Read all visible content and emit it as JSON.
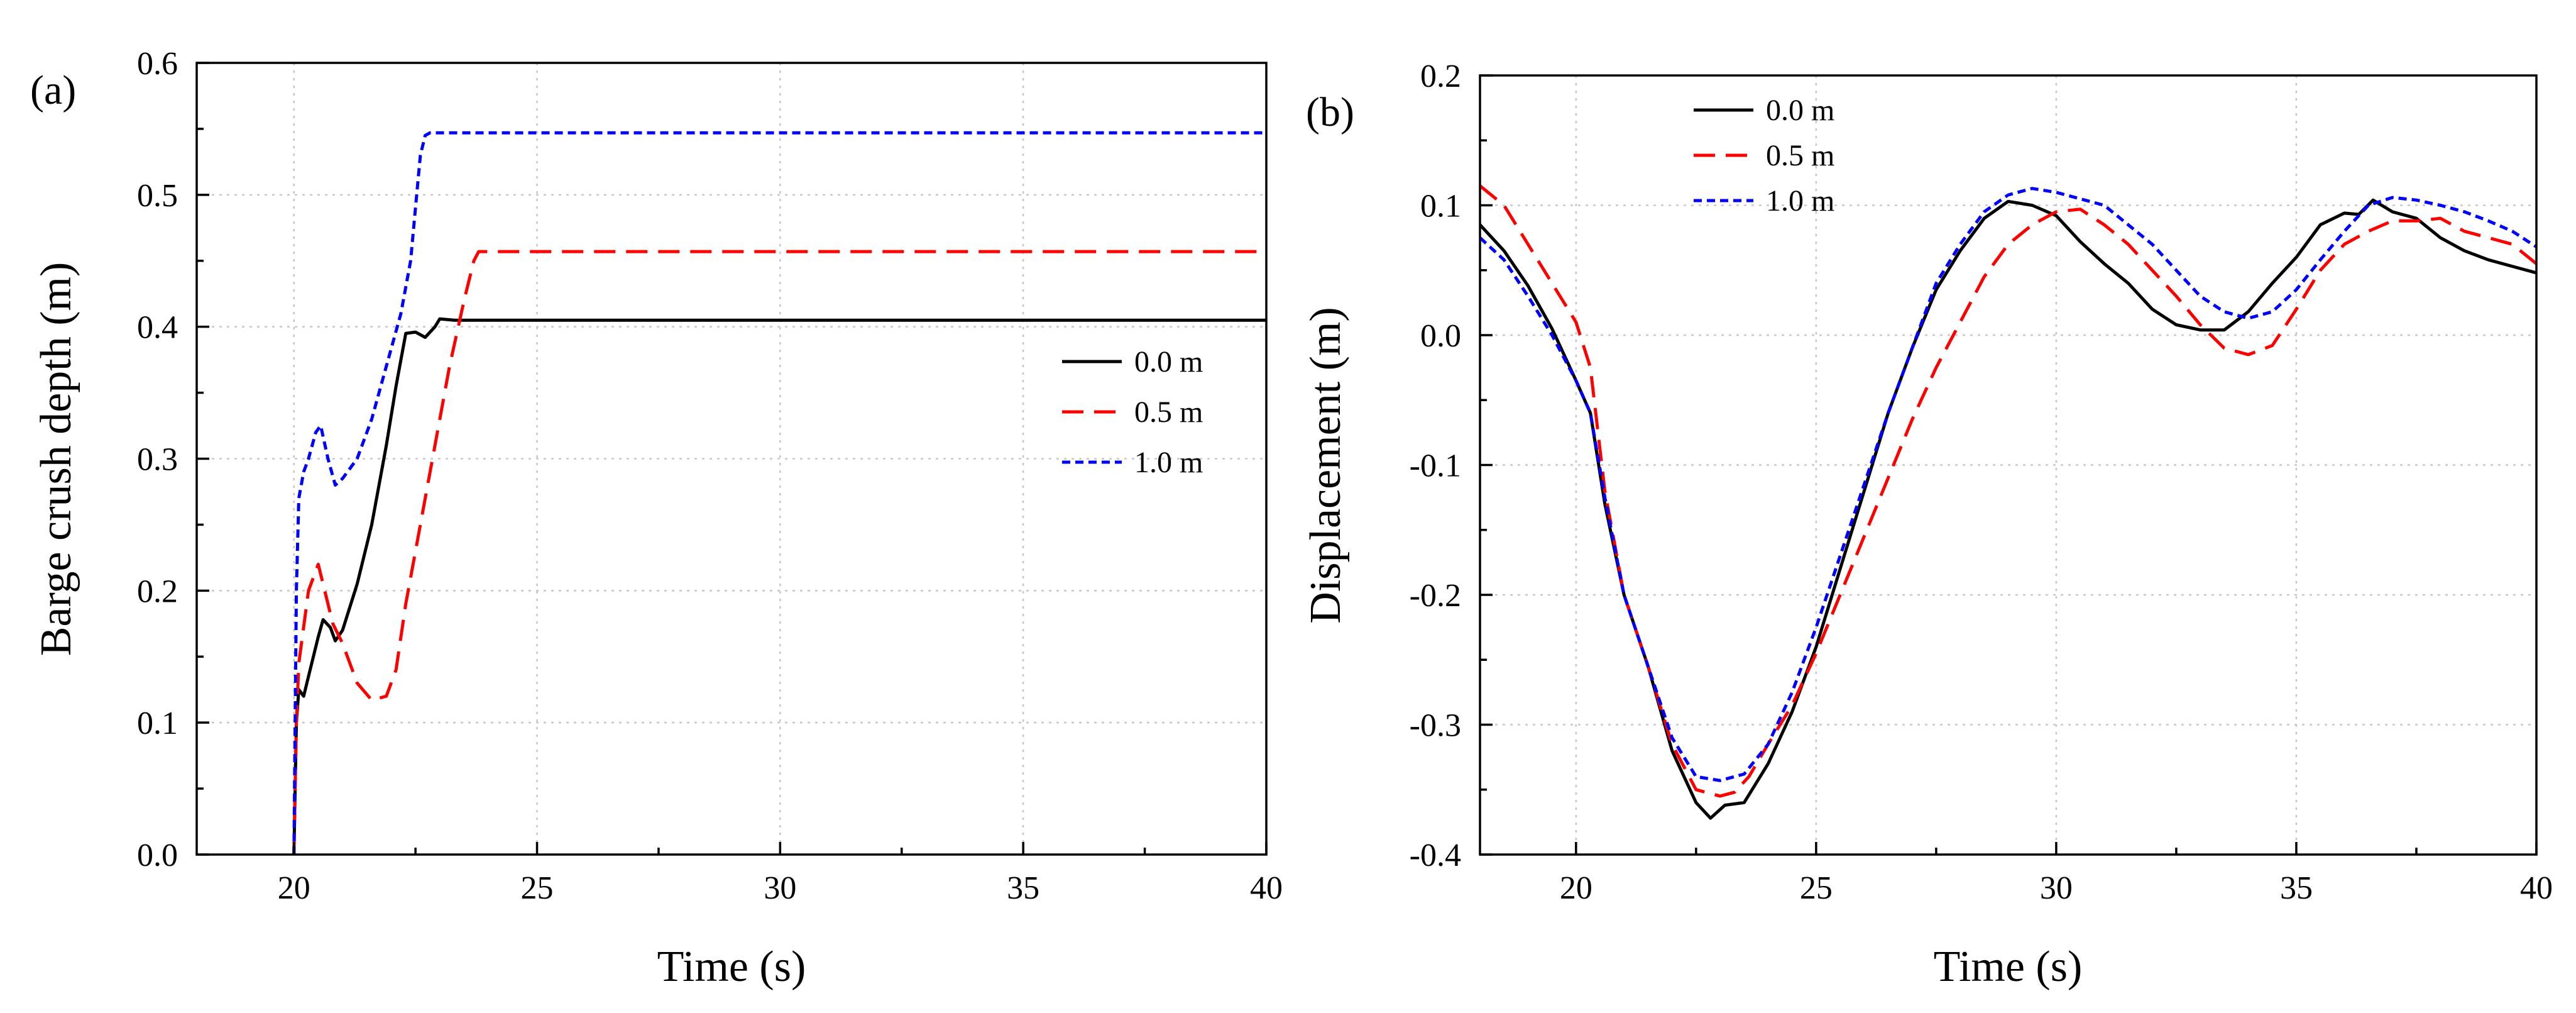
{
  "chart_data": [
    {
      "type": "line",
      "panel_label": "(a)",
      "title": "",
      "xlabel": "Time (s)",
      "ylabel": "Barge crush depth (m)",
      "xlim": [
        18,
        40
      ],
      "ylim": [
        0,
        0.6
      ],
      "xticks": [
        20,
        25,
        30,
        35,
        40
      ],
      "yticks": [
        0.0,
        0.1,
        0.2,
        0.3,
        0.4,
        0.5,
        0.6
      ],
      "xtick_labels": [
        "20",
        "25",
        "30",
        "35",
        "40"
      ],
      "ytick_labels": [
        "0.0",
        "0.1",
        "0.2",
        "0.3",
        "0.4",
        "0.5",
        "0.6"
      ],
      "grid": true,
      "legend_position": "center-right",
      "series": [
        {
          "name": "0.0 m",
          "color": "#000000",
          "style": "solid",
          "x": [
            20.0,
            20.05,
            20.1,
            20.2,
            20.3,
            20.5,
            20.6,
            20.75,
            20.85,
            21.0,
            21.3,
            21.6,
            21.9,
            22.1,
            22.3,
            22.5,
            22.7,
            22.9,
            23.0,
            23.3,
            24.0,
            30.0,
            40.0
          ],
          "y": [
            0.0,
            0.1,
            0.125,
            0.12,
            0.135,
            0.165,
            0.178,
            0.172,
            0.162,
            0.17,
            0.205,
            0.25,
            0.31,
            0.355,
            0.395,
            0.396,
            0.392,
            0.4,
            0.406,
            0.405,
            0.405,
            0.405,
            0.405
          ]
        },
        {
          "name": "0.5 m",
          "color": "#ff0000",
          "style": "dashed",
          "x": [
            20.0,
            20.05,
            20.1,
            20.3,
            20.5,
            20.6,
            20.8,
            21.0,
            21.3,
            21.6,
            21.9,
            22.1,
            22.3,
            22.6,
            22.9,
            23.2,
            23.5,
            23.7,
            23.8,
            24.5,
            30.0,
            40.0
          ],
          "y": [
            0.0,
            0.1,
            0.145,
            0.2,
            0.22,
            0.205,
            0.175,
            0.16,
            0.13,
            0.117,
            0.12,
            0.14,
            0.19,
            0.25,
            0.31,
            0.37,
            0.42,
            0.45,
            0.457,
            0.457,
            0.457,
            0.457
          ]
        },
        {
          "name": "1.0 m",
          "color": "#0000ff",
          "style": "dotted",
          "x": [
            20.0,
            20.05,
            20.1,
            20.2,
            20.3,
            20.45,
            20.55,
            20.7,
            20.85,
            21.0,
            21.3,
            21.6,
            21.9,
            22.2,
            22.4,
            22.5,
            22.6,
            22.7,
            22.8,
            23.2,
            30.0,
            40.0
          ],
          "y": [
            0.0,
            0.2,
            0.27,
            0.29,
            0.3,
            0.32,
            0.325,
            0.3,
            0.28,
            0.285,
            0.3,
            0.33,
            0.37,
            0.41,
            0.45,
            0.49,
            0.53,
            0.545,
            0.547,
            0.547,
            0.547,
            0.547
          ]
        }
      ]
    },
    {
      "type": "line",
      "panel_label": "(b)",
      "title": "",
      "xlabel": "Time (s)",
      "ylabel": "Displacement (m)",
      "xlim": [
        18,
        40
      ],
      "ylim": [
        -0.4,
        0.2
      ],
      "xticks": [
        20,
        25,
        30,
        35,
        40
      ],
      "yticks": [
        -0.4,
        -0.3,
        -0.2,
        -0.1,
        0.0,
        0.1,
        0.2
      ],
      "xtick_labels": [
        "20",
        "25",
        "30",
        "35",
        "40"
      ],
      "ytick_labels": [
        "-0.4",
        "-0.3",
        "-0.2",
        "-0.1",
        "0.0",
        "0.1",
        "0.2"
      ],
      "grid": true,
      "legend_position": "top-left",
      "series": [
        {
          "name": "0.0 m",
          "color": "#000000",
          "style": "solid",
          "x": [
            18,
            18.5,
            19,
            19.5,
            20,
            20.3,
            20.6,
            21,
            21.5,
            22,
            22.5,
            22.8,
            23.1,
            23.5,
            24,
            24.5,
            25,
            25.5,
            26,
            26.5,
            27,
            27.5,
            28,
            28.5,
            29,
            29.5,
            30,
            30.5,
            31,
            31.5,
            32,
            32.5,
            33,
            33.5,
            34,
            34.5,
            35,
            35.5,
            36,
            36.3,
            36.6,
            37,
            37.5,
            38,
            38.5,
            39,
            39.5,
            40
          ],
          "y": [
            0.085,
            0.065,
            0.038,
            0.005,
            -0.035,
            -0.06,
            -0.13,
            -0.2,
            -0.255,
            -0.32,
            -0.36,
            -0.372,
            -0.362,
            -0.36,
            -0.33,
            -0.29,
            -0.24,
            -0.18,
            -0.12,
            -0.06,
            -0.01,
            0.035,
            0.065,
            0.09,
            0.103,
            0.1,
            0.092,
            0.072,
            0.055,
            0.04,
            0.02,
            0.008,
            0.004,
            0.004,
            0.018,
            0.04,
            0.06,
            0.085,
            0.094,
            0.093,
            0.104,
            0.095,
            0.09,
            0.075,
            0.065,
            0.058,
            0.053,
            0.048
          ]
        },
        {
          "name": "0.5 m",
          "color": "#ff0000",
          "style": "dashed",
          "x": [
            18,
            18.5,
            19,
            19.5,
            20,
            20.3,
            20.6,
            21,
            21.5,
            22,
            22.5,
            23,
            23.3,
            23.6,
            24,
            24.5,
            25,
            25.5,
            26,
            26.5,
            27,
            27.5,
            28,
            28.5,
            29,
            29.5,
            30,
            30.5,
            31,
            31.5,
            32,
            32.5,
            33,
            33.5,
            34,
            34.5,
            35,
            35.5,
            36,
            36.5,
            37,
            37.5,
            38,
            38.5,
            39,
            39.5,
            40
          ],
          "y": [
            0.115,
            0.1,
            0.07,
            0.04,
            0.01,
            -0.025,
            -0.12,
            -0.2,
            -0.255,
            -0.315,
            -0.35,
            -0.355,
            -0.352,
            -0.34,
            -0.315,
            -0.285,
            -0.245,
            -0.2,
            -0.155,
            -0.11,
            -0.065,
            -0.025,
            0.01,
            0.045,
            0.07,
            0.085,
            0.095,
            0.097,
            0.085,
            0.07,
            0.05,
            0.03,
            0.008,
            -0.01,
            -0.015,
            -0.008,
            0.02,
            0.05,
            0.07,
            0.08,
            0.088,
            0.088,
            0.09,
            0.08,
            0.075,
            0.07,
            0.055
          ]
        },
        {
          "name": "1.0 m",
          "color": "#0000ff",
          "style": "dotted",
          "x": [
            18,
            18.5,
            19,
            19.5,
            20,
            20.3,
            20.6,
            21,
            21.5,
            22,
            22.5,
            23,
            23.5,
            24,
            24.5,
            25,
            25.5,
            26,
            26.5,
            27,
            27.5,
            28,
            28.5,
            29,
            29.5,
            30,
            30.5,
            31,
            31.5,
            32,
            32.5,
            33,
            33.5,
            34,
            34.5,
            35,
            35.5,
            36,
            36.5,
            37,
            37.5,
            38,
            38.5,
            39,
            39.5,
            40
          ],
          "y": [
            0.075,
            0.058,
            0.03,
            0.0,
            -0.035,
            -0.06,
            -0.125,
            -0.2,
            -0.255,
            -0.31,
            -0.34,
            -0.343,
            -0.338,
            -0.315,
            -0.275,
            -0.225,
            -0.17,
            -0.115,
            -0.06,
            -0.01,
            0.04,
            0.07,
            0.095,
            0.108,
            0.113,
            0.11,
            0.105,
            0.1,
            0.085,
            0.07,
            0.05,
            0.03,
            0.018,
            0.013,
            0.018,
            0.035,
            0.058,
            0.08,
            0.1,
            0.106,
            0.104,
            0.1,
            0.095,
            0.088,
            0.08,
            0.068
          ]
        }
      ]
    }
  ]
}
